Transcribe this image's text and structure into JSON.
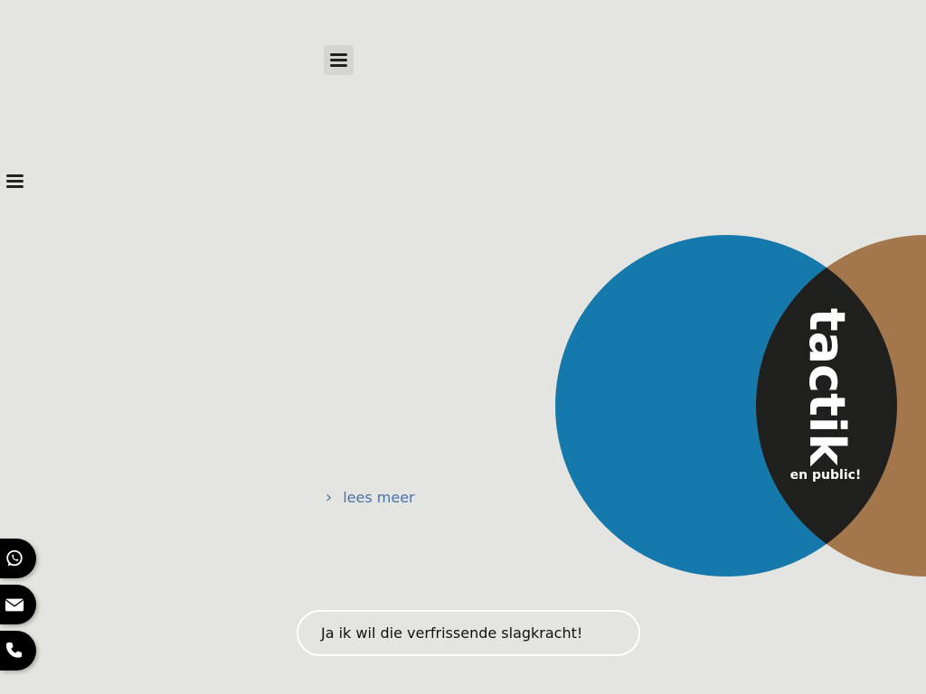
{
  "header": {
    "menu_icon": "hamburger-icon"
  },
  "sidebar": {
    "menu_icon": "hamburger-icon"
  },
  "hero": {
    "read_more_label": "lees meer",
    "read_more_icon": "chevron-right-icon"
  },
  "logo": {
    "title": "tactik",
    "subtitle": "en public!",
    "colors": {
      "blue": "#1579ac",
      "brown": "#a3764b",
      "overlap": "#1f1f1d"
    }
  },
  "cta": {
    "label": "Ja ik wil die verfrissende slagkracht!"
  },
  "contact": {
    "items": [
      {
        "icon": "whatsapp-icon"
      },
      {
        "icon": "envelope-icon"
      },
      {
        "icon": "phone-icon"
      }
    ]
  }
}
